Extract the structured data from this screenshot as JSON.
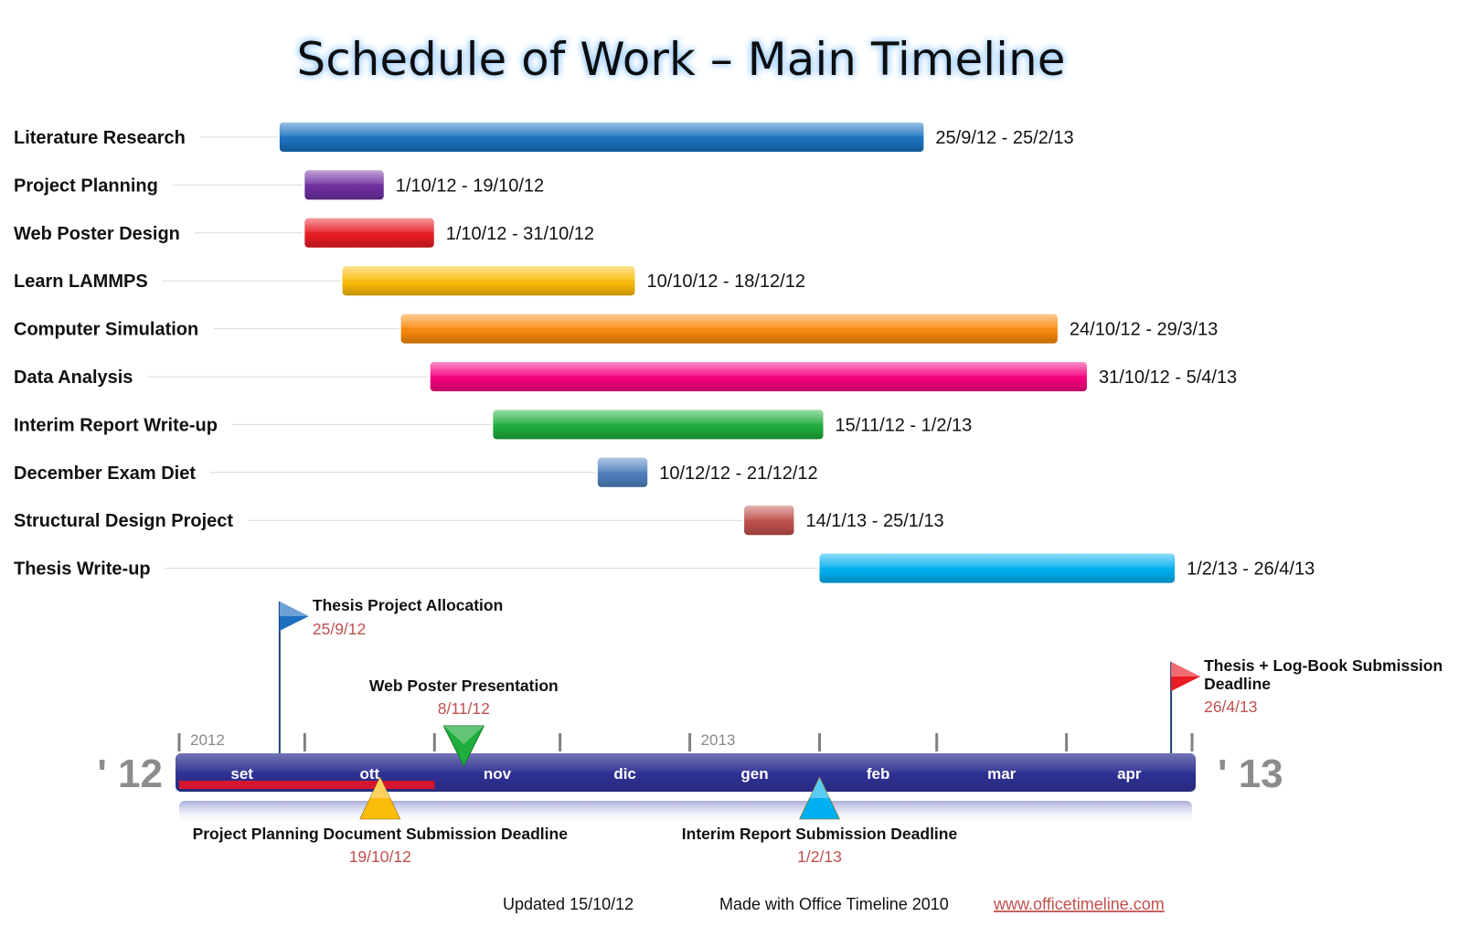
{
  "chart_data": {
    "type": "gantt",
    "title": "Schedule of Work – Main Timeline",
    "tasks": [
      {
        "name": "Literature Research",
        "start": "2012-09-25",
        "end": "2013-02-25",
        "label": "25/9/12  -  25/2/13",
        "color": "#1b73c0"
      },
      {
        "name": "Project Planning",
        "start": "2012-10-01",
        "end": "2012-10-19",
        "label": "1/10/12  -  19/10/12",
        "color": "#7030a0"
      },
      {
        "name": "Web Poster Design",
        "start": "2012-10-01",
        "end": "2012-10-31",
        "label": "1/10/12  -  31/10/12",
        "color": "#e81c24"
      },
      {
        "name": "Learn LAMMPS",
        "start": "2012-10-10",
        "end": "2012-12-18",
        "label": "10/10/12  -  18/12/12",
        "color": "#fbbc0a"
      },
      {
        "name": "Computer Simulation",
        "start": "2012-10-24",
        "end": "2013-03-29",
        "label": "24/10/12  -  29/3/13",
        "color": "#fb8a0c"
      },
      {
        "name": "Data Analysis",
        "start": "2012-10-31",
        "end": "2013-04-05",
        "label": "31/10/12  -  5/4/13",
        "color": "#f7007f"
      },
      {
        "name": "Interim Report Write-up",
        "start": "2012-11-15",
        "end": "2013-02-01",
        "label": "15/11/12  -  1/2/13",
        "color": "#1fad3c"
      },
      {
        "name": "December Exam Diet",
        "start": "2012-12-10",
        "end": "2012-12-21",
        "label": "10/12/12  -  21/12/12",
        "color": "#4f81bd"
      },
      {
        "name": "Structural Design Project",
        "start": "2013-01-14",
        "end": "2013-01-25",
        "label": "14/1/13  -  25/1/13",
        "color": "#c0504d"
      },
      {
        "name": "Thesis Write-up",
        "start": "2013-02-01",
        "end": "2013-04-26",
        "label": "1/2/13  -  26/4/13",
        "color": "#00b0f0"
      }
    ],
    "timeline": {
      "start": "2012-09-01",
      "end": "2013-04-30",
      "months": [
        "set",
        "ott",
        "nov",
        "dic",
        "gen",
        "feb",
        "mar",
        "apr"
      ],
      "year_labels": [
        {
          "text": "2012",
          "date": "2012-09-01"
        },
        {
          "text": "2013",
          "date": "2013-01-01"
        }
      ],
      "start_year_label": "' 12",
      "end_year_label": "' 13",
      "bar_color": "#2e3192",
      "today_marker": {
        "start": "2012-09-01",
        "end": "2012-11-01",
        "color": "#d7152f"
      }
    },
    "milestones": [
      {
        "name": "Thesis Project Allocation",
        "date": "2012-09-25",
        "label": "25/9/12",
        "shape": "flag",
        "color": "#1f6fbf",
        "position": "above"
      },
      {
        "name": "Web Poster Presentation",
        "date": "2012-11-08",
        "label": "8/11/12",
        "shape": "triangle-down",
        "color": "#1fad3c",
        "position": "above"
      },
      {
        "name": "Thesis + Log-Book Submission Deadline",
        "date": "2013-04-26",
        "label": "26/4/13",
        "shape": "flag",
        "color": "#e81c24",
        "position": "above"
      },
      {
        "name": "Project Planning Document Submission Deadline",
        "date": "2012-10-19",
        "label": "19/10/12",
        "shape": "triangle-up",
        "color": "#fbbc0a",
        "position": "below"
      },
      {
        "name": "Interim Report Submission Deadline",
        "date": "2013-02-01",
        "label": "1/2/13",
        "shape": "triangle-up",
        "color": "#00b0f0",
        "position": "below"
      }
    ]
  },
  "footer": {
    "updated": "Updated 15/10/12",
    "made_with": "Made with Office Timeline 2010",
    "link": "www.officetimeline.com"
  }
}
